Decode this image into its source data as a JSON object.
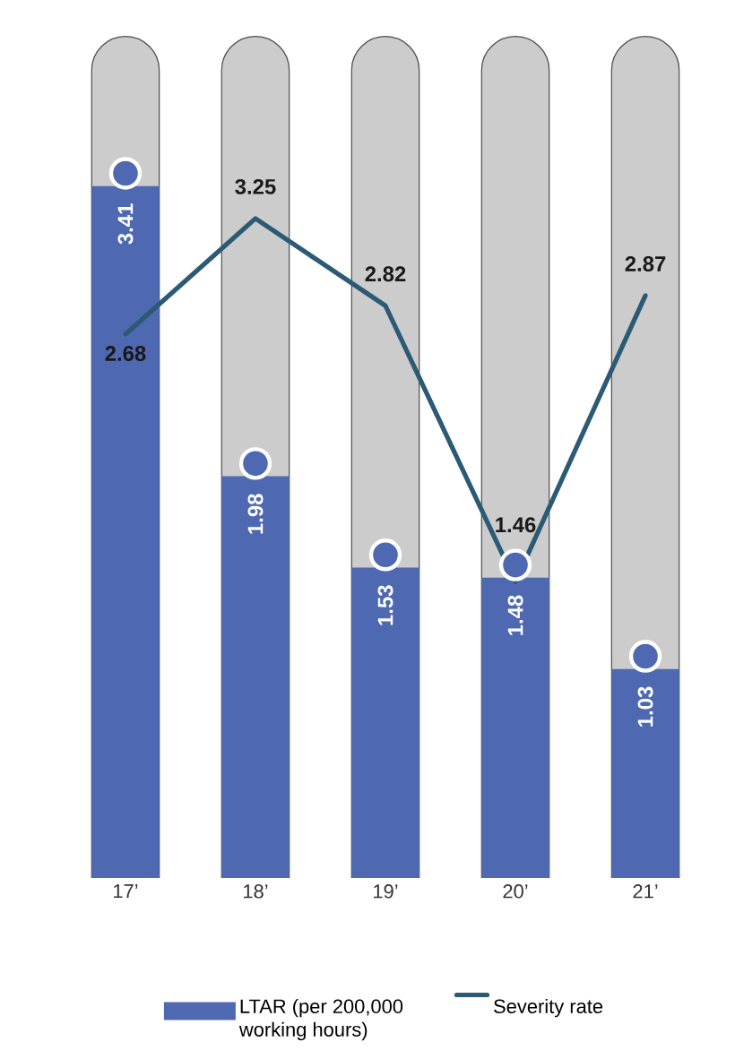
{
  "chart_data": {
    "type": "bar",
    "categories": [
      "17’",
      "18’",
      "19’",
      "20’",
      "21’"
    ],
    "legend": "bottom",
    "data_labels": true,
    "series": [
      {
        "name": "LTAR (per 200,000 working hours)",
        "color": "#4e69b2",
        "values": [
          3.41,
          1.98,
          1.53,
          1.48,
          1.03
        ]
      },
      {
        "name": "Severity rate",
        "type": "line",
        "color": "#2c5a74",
        "values": [
          2.68,
          3.25,
          2.82,
          1.46,
          2.87
        ]
      }
    ]
  }
}
